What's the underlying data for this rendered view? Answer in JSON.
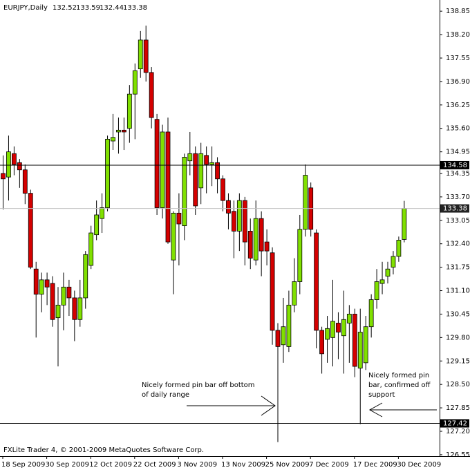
{
  "chart_data": {
    "type": "candlestick",
    "title": "EURJPY,Daily",
    "categories": [
      "18 Sep 2009",
      null,
      null,
      null,
      null,
      null,
      null,
      null,
      "30 Sep 2009",
      null,
      null,
      null,
      null,
      null,
      null,
      null,
      "12 Oct 2009",
      null,
      null,
      null,
      null,
      null,
      null,
      null,
      "22 Oct 2009",
      null,
      null,
      null,
      null,
      null,
      null,
      null,
      "3 Nov 2009",
      null,
      null,
      null,
      null,
      null,
      null,
      null,
      "13 Nov 2009",
      null,
      null,
      null,
      null,
      null,
      null,
      null,
      "25 Nov 2009",
      null,
      null,
      null,
      null,
      null,
      null,
      null,
      "7 Dec 2009",
      null,
      null,
      null,
      null,
      null,
      null,
      null,
      "17 Dec 2009",
      null,
      null,
      null,
      null,
      null,
      null,
      null,
      "30 Dec 2009",
      null
    ],
    "open": [
      134.35,
      134.25,
      134.9,
      134.65,
      134.45,
      133.8,
      131.7,
      131.0,
      131.4,
      131.3,
      130.35,
      130.7,
      131.2,
      130.9,
      130.3,
      130.9,
      131.8,
      132.65,
      133.1,
      133.4,
      135.25,
      135.5,
      135.55,
      135.6,
      136.55,
      137.25,
      138.05,
      137.15,
      135.85,
      133.4,
      135.5,
      131.95,
      133.25,
      132.9,
      134.7,
      134.9,
      133.95,
      134.85,
      134.6,
      134.65,
      134.2,
      133.6,
      133.3,
      132.75,
      133.6,
      132.75,
      131.95,
      133.1,
      132.45,
      132.15,
      130.0,
      129.6,
      129.55,
      130.7,
      131.35,
      132.8,
      133.95,
      132.7,
      130.0,
      129.75,
      129.8,
      130.2,
      129.85,
      130.2,
      130.45,
      128.95,
      129.1,
      130.1,
      130.85,
      131.3,
      131.5,
      131.75,
      132.05,
      132.52
    ],
    "high": [
      134.85,
      135.4,
      135.1,
      134.75,
      134.6,
      133.9,
      131.9,
      131.6,
      131.6,
      131.5,
      131.2,
      131.6,
      131.4,
      131.1,
      131.4,
      132.2,
      132.9,
      133.6,
      133.8,
      135.4,
      136.0,
      135.9,
      135.9,
      136.8,
      137.4,
      138.3,
      138.45,
      137.3,
      136.0,
      135.7,
      135.9,
      133.3,
      133.8,
      134.9,
      135.5,
      135.1,
      135.2,
      135.1,
      135.1,
      134.8,
      134.3,
      133.8,
      133.6,
      133.8,
      133.7,
      133.1,
      133.6,
      133.3,
      132.8,
      132.3,
      130.2,
      130.9,
      131.1,
      132.0,
      133.2,
      134.6,
      134.1,
      132.8,
      130.1,
      130.4,
      131.4,
      130.5,
      131.1,
      130.7,
      130.6,
      130.6,
      130.4,
      131.0,
      131.7,
      131.9,
      131.9,
      132.2,
      132.6,
      133.59
    ],
    "low": [
      133.35,
      133.6,
      134.3,
      133.95,
      133.5,
      131.7,
      129.8,
      130.5,
      130.7,
      130.1,
      129.0,
      130.0,
      130.4,
      129.7,
      130.1,
      130.6,
      131.7,
      132.5,
      132.7,
      133.3,
      135.0,
      134.9,
      135.0,
      135.2,
      135.3,
      137.0,
      136.9,
      135.6,
      133.2,
      133.1,
      132.4,
      131.0,
      131.8,
      132.5,
      134.3,
      133.2,
      133.5,
      133.8,
      134.0,
      133.8,
      133.3,
      132.8,
      132.0,
      132.2,
      131.8,
      131.7,
      131.8,
      131.5,
      131.8,
      129.6,
      126.9,
      129.1,
      129.4,
      130.5,
      131.0,
      132.6,
      132.6,
      129.5,
      128.8,
      129.1,
      129.0,
      129.2,
      128.8,
      129.1,
      128.7,
      127.4,
      128.9,
      129.8,
      130.6,
      131.0,
      131.3,
      131.55,
      131.9,
      132.44
    ],
    "close": [
      134.2,
      134.95,
      134.6,
      134.45,
      133.8,
      131.75,
      131.0,
      131.4,
      131.2,
      130.3,
      130.7,
      131.2,
      130.9,
      130.3,
      130.9,
      132.1,
      132.7,
      133.2,
      133.4,
      135.3,
      135.35,
      135.55,
      135.5,
      136.55,
      137.2,
      138.05,
      137.15,
      135.9,
      133.4,
      135.5,
      132.45,
      133.25,
      132.95,
      134.8,
      134.9,
      133.45,
      134.9,
      134.6,
      134.65,
      134.2,
      133.6,
      133.25,
      132.75,
      133.6,
      132.45,
      132.0,
      133.1,
      132.2,
      132.2,
      130.0,
      129.55,
      130.1,
      130.7,
      131.35,
      132.8,
      134.3,
      132.8,
      130.0,
      129.35,
      130.05,
      130.25,
      129.95,
      130.3,
      130.45,
      129.0,
      129.95,
      130.1,
      130.85,
      131.35,
      131.4,
      131.7,
      132.05,
      132.5,
      133.38
    ],
    "up_color": "#80e000",
    "down_color": "#d40000",
    "ylim": [
      126.51,
      139.16
    ],
    "yticks": [
      138.85,
      {
        "value": 138.2,
        "label": "138.20"
      },
      137.55,
      {
        "value": 136.9,
        "label": "136.90"
      },
      136.25,
      {
        "value": 135.6,
        "label": "135.60"
      },
      134.95,
      134.35,
      {
        "value": 133.7,
        "label": "133.70"
      },
      133.05,
      {
        "value": 132.4,
        "label": "132.40"
      },
      131.75,
      {
        "value": 131.1,
        "label": "131.10"
      },
      130.45,
      {
        "value": 129.8,
        "label": "129.80"
      },
      129.15,
      {
        "value": 128.5,
        "label": "128.50"
      },
      127.85,
      {
        "value": 127.2,
        "label": "127.20"
      },
      126.55
    ],
    "hlines": [
      134.58,
      127.42
    ],
    "annotations": [
      [
        "Nicely formed pin bar off bottom",
        "of daily range"
      ],
      [
        "Nicely formed pin",
        "bar, confirmed off",
        "support"
      ]
    ],
    "footer": "FXLite Trader 4, © 2001-2009 MetaQuotes Software Corp."
  }
}
